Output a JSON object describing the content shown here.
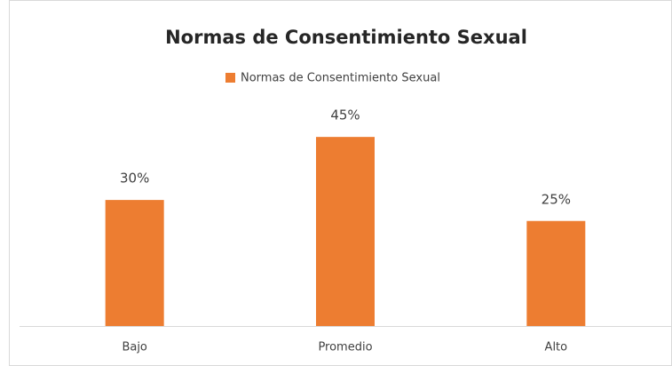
{
  "chart_data": {
    "type": "bar",
    "title": "Normas de Consentimiento Sexual",
    "categories": [
      "Bajo",
      "Promedio",
      "Alto"
    ],
    "series": [
      {
        "name": "Normas de Consentimiento Sexual",
        "color": "#ed7d31",
        "values": [
          30,
          45,
          25
        ],
        "value_labels": [
          "30%",
          "45%",
          "25%"
        ]
      }
    ]
  }
}
